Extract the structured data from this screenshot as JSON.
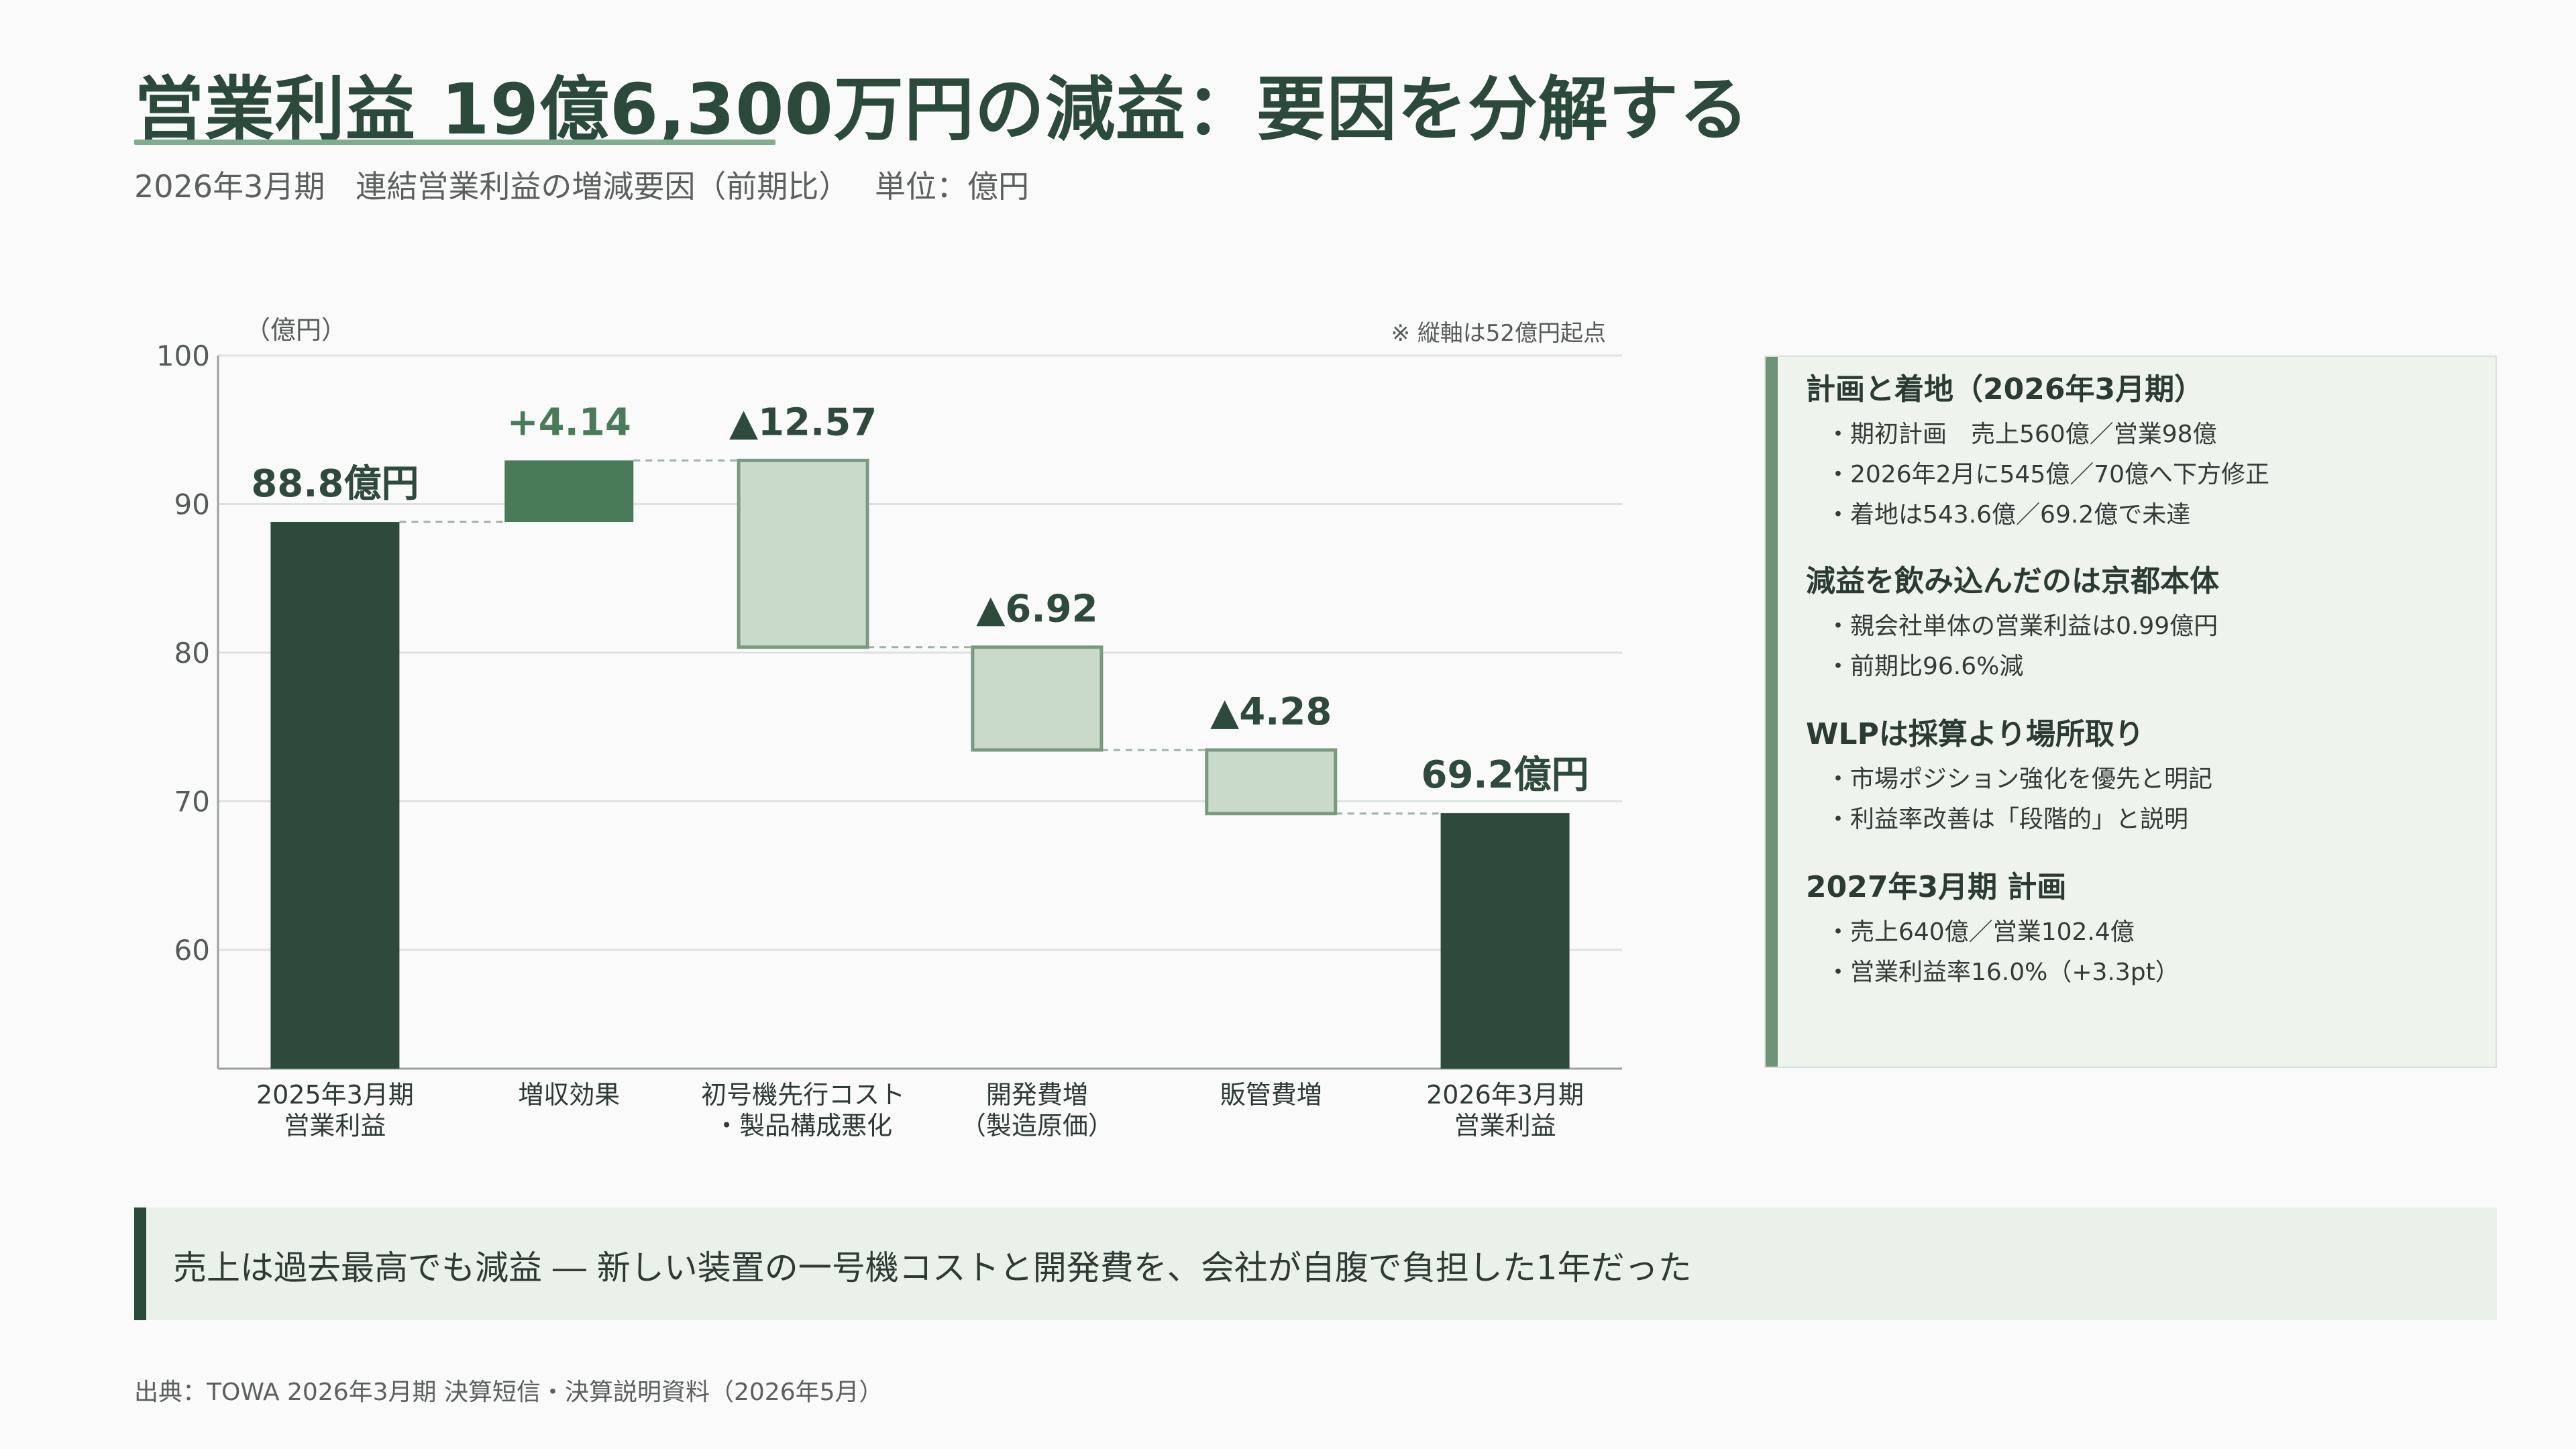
{
  "header": {
    "title": "営業利益 19億6,300万円の減益：要因を分解する",
    "subtitle": "2026年3月期　連結営業利益の増減要因（前期比）　 単位：億円"
  },
  "chart_data": {
    "type": "waterfall",
    "unit_label": "（億円）",
    "note": "※ 縦軸は52億円起点",
    "ylim": [
      52,
      100
    ],
    "yticks": [
      60,
      70,
      80,
      90,
      100
    ],
    "grid": true,
    "steps": [
      {
        "label": [
          "2025年3月期",
          "営業利益"
        ],
        "kind": "total",
        "start": 0,
        "end": 88.8,
        "value_label": "88.8億円"
      },
      {
        "label": [
          "増収効果"
        ],
        "kind": "increase",
        "start": 88.8,
        "end": 92.94,
        "value_label": "+4.14"
      },
      {
        "label": [
          "初号機先行コスト",
          "・製品構成悪化"
        ],
        "kind": "decrease",
        "start": 92.94,
        "end": 80.37,
        "value_label": "▲12.57"
      },
      {
        "label": [
          "開発費増",
          "（製造原価）"
        ],
        "kind": "decrease",
        "start": 80.37,
        "end": 73.45,
        "value_label": "▲6.92"
      },
      {
        "label": [
          "販管費増"
        ],
        "kind": "decrease",
        "start": 73.45,
        "end": 69.17,
        "value_label": "▲4.28"
      },
      {
        "label": [
          "2026年3月期",
          "営業利益"
        ],
        "kind": "total",
        "start": 0,
        "end": 69.2,
        "value_label": "69.2億円"
      }
    ],
    "colors": {
      "total": "#2d4a3c",
      "increase": "#4a7b59",
      "decrease_fill": "#c9dacb",
      "decrease_stroke": "#7a9a80",
      "grid": "#dde2de",
      "axis": "#9aa29d",
      "connector": "#9fb2a4",
      "text": "#2d4a3c"
    }
  },
  "side_panel": {
    "sections": [
      {
        "heading": "計画と着地（2026年3月期）",
        "items": [
          "・期初計画　売上560億／営業98億",
          "・2026年2月に545億／70億へ下方修正",
          "・着地は543.6億／69.2億で未達"
        ]
      },
      {
        "heading": "減益を飲み込んだのは京都本体",
        "items": [
          "・親会社単体の営業利益は0.99億円",
          "・前期比96.6%減"
        ]
      },
      {
        "heading": "WLPは採算より場所取り",
        "items": [
          "・市場ポジション強化を優先と明記",
          "・利益率改善は「段階的」と説明"
        ]
      },
      {
        "heading": "2027年3月期 計画",
        "items": [
          "・売上640億／営業102.4億",
          "・営業利益率16.0%（+3.3pt）"
        ]
      }
    ]
  },
  "callout": {
    "text": "売上は過去最高でも減益 ― 新しい装置の一号機コストと開発費を、会社が自腹で負担した1年だった"
  },
  "footer": {
    "source": "出典：TOWA 2026年3月期 決算短信・決算説明資料（2026年5月）"
  }
}
